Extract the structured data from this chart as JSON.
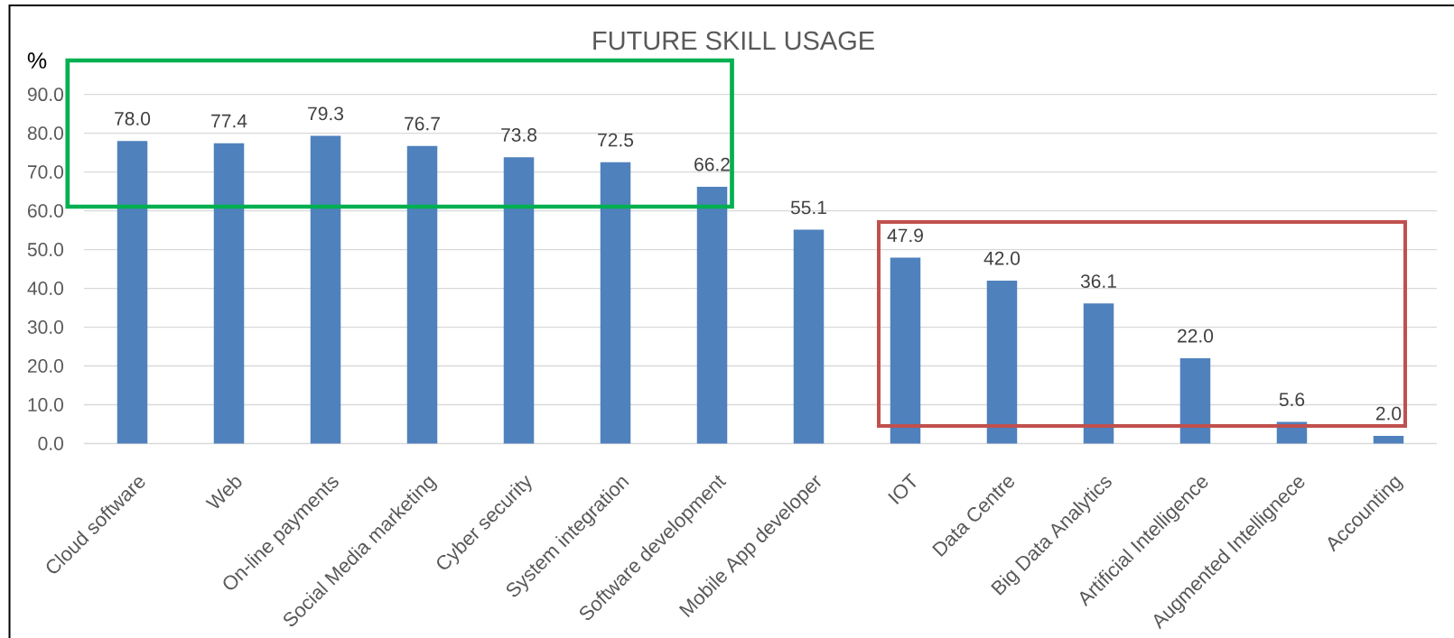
{
  "chart_data": {
    "type": "bar",
    "title": "FUTURE SKILL USAGE",
    "ylabel": "%",
    "categories": [
      "Cloud software",
      "Web",
      "On-line payments",
      "Social Media marketing",
      "Cyber security",
      "System integration",
      "Software development",
      "Mobile App developer",
      "IOT",
      "Data Centre",
      "Big Data Analytics",
      "Artificial Intelligence",
      "Augmented Intellignece",
      "Accounting"
    ],
    "values": [
      78.0,
      77.4,
      79.3,
      76.7,
      73.8,
      72.5,
      66.2,
      55.1,
      47.9,
      42.0,
      36.1,
      22.0,
      5.6,
      2.0
    ],
    "value_labels": [
      "78.0",
      "77.4",
      "79.3",
      "76.7",
      "73.8",
      "72.5",
      "66.2",
      "55.1",
      "47.9",
      "42.0",
      "36.1",
      "22.0",
      "5.6",
      "2.0"
    ],
    "color": "#4f81bd",
    "ylim": [
      0,
      90
    ],
    "yticks": [
      {
        "value": 0,
        "label": "0.0"
      },
      {
        "value": 10,
        "label": "10.0"
      },
      {
        "value": 20,
        "label": "20.0"
      },
      {
        "value": 30,
        "label": "30.0"
      },
      {
        "value": 40,
        "label": "40.0"
      },
      {
        "value": 50,
        "label": "50.0"
      },
      {
        "value": 60,
        "label": "60.0"
      },
      {
        "value": 70,
        "label": "70.0"
      },
      {
        "value": 80,
        "label": "80.0"
      },
      {
        "value": 90,
        "label": "90.0"
      }
    ],
    "grid": "y"
  }
}
